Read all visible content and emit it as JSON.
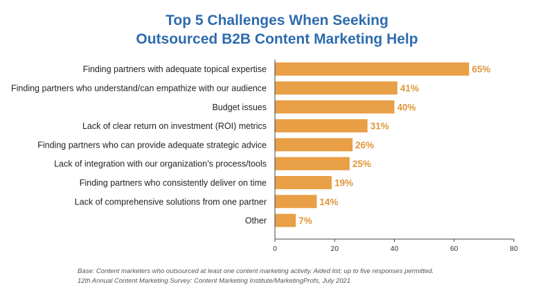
{
  "chart_data": {
    "type": "bar",
    "orientation": "horizontal",
    "title_lines": [
      "Top 5 Challenges When Seeking",
      "Outsourced B2B Content Marketing Help"
    ],
    "categories": [
      "Finding partners with adequate topical expertise",
      "Finding partners who understand/can empathize with our audience",
      "Budget issues",
      "Lack of clear return on investment (ROI) metrics",
      "Finding partners who can provide adequate strategic advice",
      "Lack of integration with our organization’s process/tools",
      "Finding partners who consistently deliver on time",
      "Lack of comprehensive solutions from one partner",
      "Other"
    ],
    "values": [
      65,
      41,
      40,
      31,
      26,
      25,
      19,
      14,
      7
    ],
    "value_labels": [
      "65%",
      "41%",
      "40%",
      "31%",
      "26%",
      "25%",
      "19%",
      "14%",
      "7%"
    ],
    "xlim": [
      0,
      80
    ],
    "xticks": [
      0,
      20,
      40,
      60,
      80
    ],
    "xtick_labels": [
      "0",
      "20",
      "40",
      "60",
      "80"
    ],
    "grid": false,
    "bar_color": "#E89F45",
    "label_color": "#E0963C",
    "title_color": "#2E6BAE"
  },
  "footnotes": [
    "Base: Content marketers who outsourced at least one content marketing activity. Aided list; up to five responses permitted.",
    "12th Annual Content Marketing Survey: Content Marketing Institute/MarketingProfs, July 2021"
  ]
}
